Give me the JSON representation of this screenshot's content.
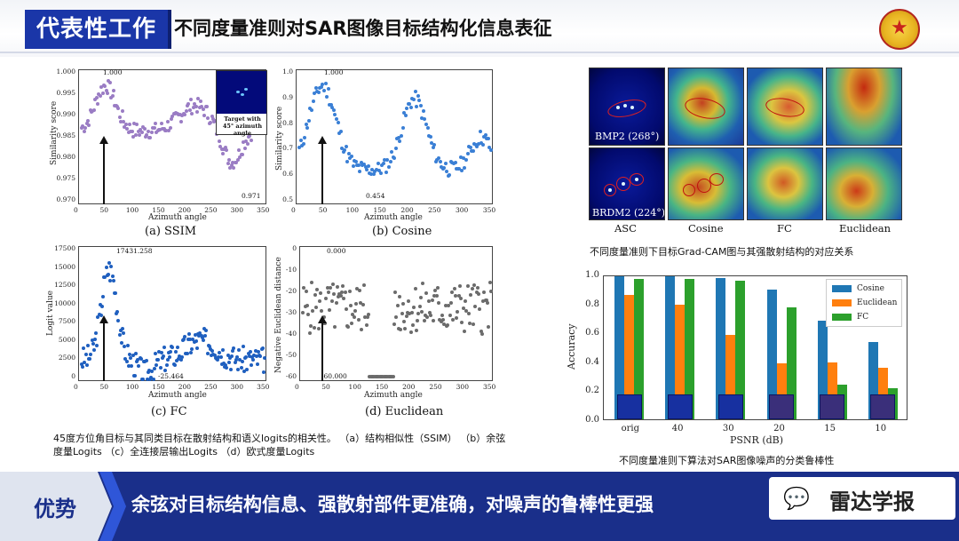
{
  "header": {
    "tag": "代表性工作",
    "title": "不同度量准则对SAR图像目标结构化信息表征",
    "logo": "school-emblem-icon"
  },
  "panels": {
    "ssim": {
      "caption": "(a) SSIM",
      "ylabel": "Similarity score",
      "xlabel": "Azimuth angle",
      "yticks": [
        "1.000",
        "0.995",
        "0.990",
        "0.985",
        "0.980",
        "0.975",
        "0.970"
      ],
      "xticks": [
        "0",
        "50",
        "100",
        "150",
        "200",
        "250",
        "300",
        "350"
      ],
      "annot_max": "1.000",
      "annot_min": "0.971",
      "inset_text": "Target with 45° azimuth angle"
    },
    "cosine": {
      "caption": "(b) Cosine",
      "ylabel": "Similarity score",
      "xlabel": "Azimuth angle",
      "yticks": [
        "1.0",
        "0.9",
        "0.8",
        "0.7",
        "0.6",
        "0.5"
      ],
      "xticks": [
        "0",
        "50",
        "100",
        "150",
        "200",
        "250",
        "300",
        "350"
      ],
      "annot_max": "1.000",
      "annot_min": "0.454"
    },
    "fc": {
      "caption": "(c) FC",
      "ylabel": "Logit value",
      "xlabel": "Azimuth angle",
      "yticks": [
        "17500",
        "15000",
        "12500",
        "10000",
        "7500",
        "5000",
        "2500",
        "0"
      ],
      "xticks": [
        "0",
        "50",
        "100",
        "150",
        "200",
        "250",
        "300",
        "350"
      ],
      "annot_max": "17431.258",
      "annot_min": "-25.464"
    },
    "euclid": {
      "caption": "(d) Euclidean",
      "ylabel": "Negative Euclidean distance",
      "xlabel": "Azimuth angle",
      "yticks": [
        "0",
        "-10",
        "-20",
        "-30",
        "-40",
        "-50",
        "-60"
      ],
      "xticks": [
        "0",
        "50",
        "100",
        "150",
        "200",
        "250",
        "300",
        "350"
      ],
      "annot_max": "0.000",
      "annot_min": "-60.000"
    }
  },
  "left_caption": "45度方位角目标与其同类目标在散射结构和语义logits的相关性。 （a）结构相似性（SSIM） （b）余弦度量Logits （c）全连接层输出Logits （d）欧式度量Logits",
  "gradcam": {
    "row_labels": [
      "BMP2 (268°)",
      "BRDM2 (224°)"
    ],
    "col_labels": [
      "ASC",
      "Cosine",
      "FC",
      "Euclidean"
    ],
    "caption": "不同度量准则下目标Grad-CAM图与其强散射结构的对应关系"
  },
  "chart_data": {
    "type": "bar",
    "title": "",
    "xlabel": "PSNR (dB)",
    "ylabel": "Accuracy",
    "ylim": [
      0,
      1.0
    ],
    "yticks": [
      "0.0",
      "0.2",
      "0.4",
      "0.6",
      "0.8",
      "1.0"
    ],
    "categories": [
      "orig",
      "40",
      "30",
      "20",
      "15",
      "10"
    ],
    "series": [
      {
        "name": "Cosine",
        "color": "#1f77b4",
        "values": [
          1.0,
          1.0,
          0.99,
          0.91,
          0.69,
          0.54
        ]
      },
      {
        "name": "Euclidean",
        "color": "#ff7f0e",
        "values": [
          0.87,
          0.8,
          0.59,
          0.39,
          0.4,
          0.36
        ]
      },
      {
        "name": "FC",
        "color": "#2ca02c",
        "values": [
          0.98,
          0.98,
          0.97,
          0.78,
          0.24,
          0.22
        ]
      }
    ],
    "legend": "top-right"
  },
  "bar_caption": "不同度量准则下算法对SAR图像噪声的分类鲁棒性",
  "footer": {
    "tag": "优势",
    "text": "余弦对目标结构信息、强散射部件更准确，对噪声的鲁棒性更强",
    "wechat_icon": "wechat-icon",
    "wechat_name": "雷达学报"
  }
}
